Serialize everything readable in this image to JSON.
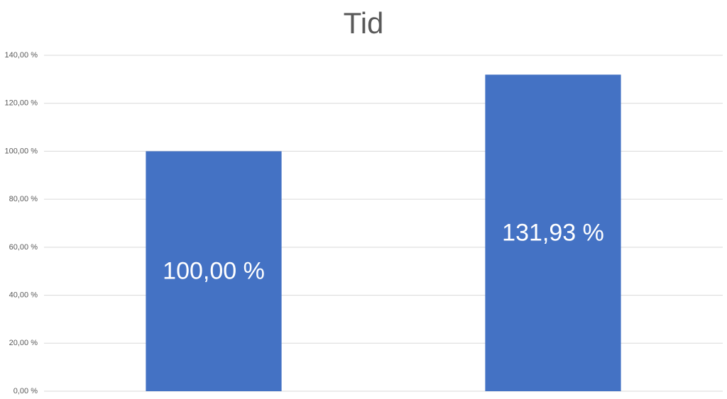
{
  "chart_data": {
    "type": "bar",
    "title": "Tid",
    "categories": [
      null,
      null
    ],
    "values": [
      100,
      131.93
    ],
    "value_labels": [
      "100,00 %",
      "131,93 %"
    ],
    "color": "#4472c4",
    "ylim": [
      0,
      140
    ],
    "yticks": [
      {
        "value": 0,
        "label": "0,00 %"
      },
      {
        "value": 20,
        "label": "20,00 %"
      },
      {
        "value": 40,
        "label": "40,00 %"
      },
      {
        "value": 60,
        "label": "60,00 %"
      },
      {
        "value": 80,
        "label": "80,00 %"
      },
      {
        "value": 100,
        "label": "100,00 %"
      },
      {
        "value": 120,
        "label": "120,00 %"
      },
      {
        "value": 140,
        "label": "140,00 %"
      }
    ],
    "grid": true
  }
}
